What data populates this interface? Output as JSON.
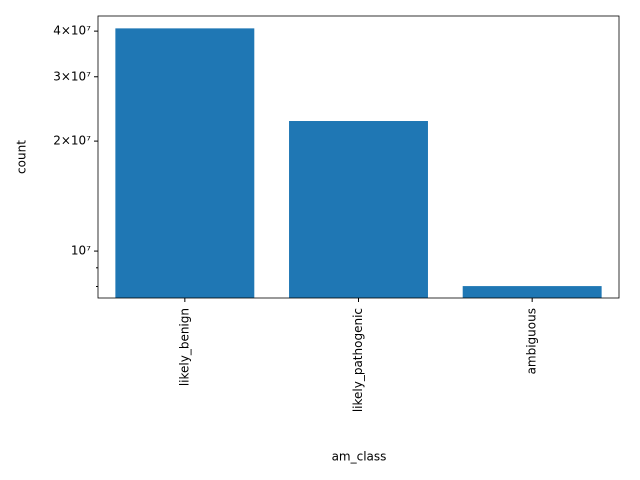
{
  "chart_data": {
    "type": "bar",
    "categories": [
      "likely_benign",
      "likely_pathogenic",
      "ambiguous"
    ],
    "values": [
      40700000,
      22700000,
      8020000
    ],
    "color": "#1f77b4",
    "x_label": "am_class",
    "y_label": "count",
    "y_scale": "log",
    "ylim": [
      7440000,
      44000000
    ],
    "yticks": [
      {
        "value": 10000000,
        "label": "10⁷"
      },
      {
        "value": 20000000,
        "label": "2×10⁷"
      },
      {
        "value": 30000000,
        "label": "3×10⁷"
      },
      {
        "value": 40000000,
        "label": "4×10⁷"
      }
    ],
    "yminorticks": [
      8000000,
      9000000
    ]
  }
}
